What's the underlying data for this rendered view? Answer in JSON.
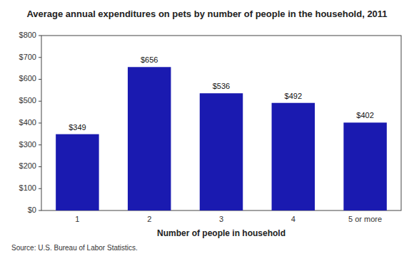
{
  "chart_data": {
    "type": "bar",
    "title": "Average annual expenditures on pets by number of people in the household, 2011",
    "categories": [
      "1",
      "2",
      "3",
      "4",
      "5 or more"
    ],
    "values": [
      349,
      656,
      536,
      492,
      402
    ],
    "color": "#1a1ab0",
    "xlabel": "Number of people in household",
    "ylim": [
      0,
      800
    ],
    "yticks": [
      {
        "value": 0,
        "label": "$0"
      },
      {
        "value": 100,
        "label": "$100"
      },
      {
        "value": 200,
        "label": "$200"
      },
      {
        "value": 300,
        "label": "$300"
      },
      {
        "value": 400,
        "label": "$400"
      },
      {
        "value": 500,
        "label": "$500"
      },
      {
        "value": 600,
        "label": "$600"
      },
      {
        "value": 700,
        "label": "$700"
      },
      {
        "value": 800,
        "label": "$800"
      }
    ],
    "grid": false,
    "data_labels": true,
    "value_labels": [
      "$349",
      "$656",
      "$536",
      "$492",
      "$402"
    ],
    "source": "Source: U.S. Bureau of Labor Statistics."
  }
}
